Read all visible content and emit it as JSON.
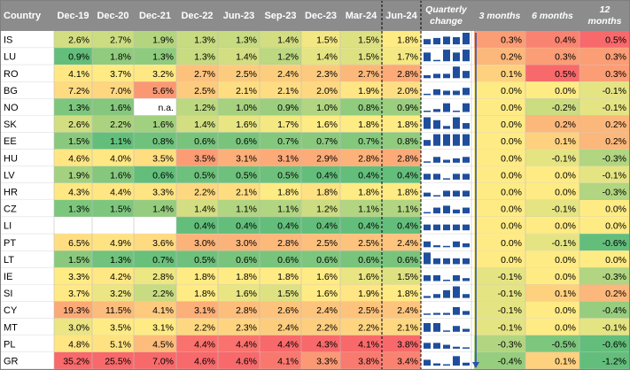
{
  "chart_data": {
    "type": "heatmap",
    "columns": {
      "country": "Country",
      "periods": [
        "Dec-19",
        "Dec-20",
        "Dec-21",
        "Dec-22",
        "Jun-23",
        "Sep-23",
        "Dec-23",
        "Mar-24",
        "Jun-24"
      ],
      "quarterly": [
        "Quarterly",
        "change"
      ],
      "changes": [
        [
          "3 months"
        ],
        [
          "6 months"
        ],
        [
          "12",
          "months"
        ]
      ]
    },
    "rows": [
      {
        "country": "IS",
        "values": [
          "2.6%",
          "2.7%",
          "1.9%",
          "1.3%",
          "1.3%",
          "1.4%",
          "1.5%",
          "1.5%",
          "1.8%"
        ],
        "changes": [
          "0.3%",
          "0.4%",
          "0.5%"
        ],
        "q": [
          -0.03,
          0.03,
          0.1,
          0.07,
          0.3
        ]
      },
      {
        "country": "LU",
        "values": [
          "0.9%",
          "1.8%",
          "1.3%",
          "1.3%",
          "1.4%",
          "1.2%",
          "1.4%",
          "1.5%",
          "1.7%"
        ],
        "changes": [
          "0.2%",
          "0.3%",
          "0.3%"
        ],
        "q": [
          0.1,
          -0.2,
          0.2,
          0.1,
          0.2
        ]
      },
      {
        "country": "RO",
        "values": [
          "4.1%",
          "3.7%",
          "3.2%",
          "2.7%",
          "2.5%",
          "2.4%",
          "2.3%",
          "2.7%",
          "2.8%"
        ],
        "changes": [
          "0.1%",
          "0.5%",
          "0.3%"
        ],
        "q": [
          -0.2,
          -0.1,
          -0.1,
          0.4,
          0.1
        ]
      },
      {
        "country": "BG",
        "values": [
          "7.2%",
          "7.0%",
          "5.6%",
          "2.5%",
          "2.1%",
          "2.1%",
          "2.0%",
          "1.9%",
          "2.0%"
        ],
        "changes": [
          "0.0%",
          "0.0%",
          "-0.1%"
        ],
        "q": [
          -0.4,
          0.0,
          -0.1,
          -0.1,
          0.1
        ]
      },
      {
        "country": "NO",
        "values": [
          "1.3%",
          "1.6%",
          "n.a.",
          "1.2%",
          "1.0%",
          "0.9%",
          "1.0%",
          "0.8%",
          "0.9%"
        ],
        "changes": [
          "0.0%",
          "-0.2%",
          "-0.1%"
        ],
        "q": [
          -0.2,
          -0.1,
          0.1,
          -0.2,
          0.1
        ]
      },
      {
        "country": "SK",
        "values": [
          "2.6%",
          "2.2%",
          "1.6%",
          "1.4%",
          "1.6%",
          "1.7%",
          "1.6%",
          "1.8%",
          "1.8%"
        ],
        "changes": [
          "0.0%",
          "0.2%",
          "0.2%"
        ],
        "q": [
          0.2,
          0.1,
          -0.1,
          0.2,
          0.0
        ]
      },
      {
        "country": "EE",
        "values": [
          "1.5%",
          "1.1%",
          "0.8%",
          "0.6%",
          "0.6%",
          "0.7%",
          "0.7%",
          "0.7%",
          "0.8%"
        ],
        "changes": [
          "0.0%",
          "0.1%",
          "0.2%"
        ],
        "q": [
          0.0,
          0.1,
          0.1,
          0.1,
          0.1
        ]
      },
      {
        "country": "HU",
        "values": [
          "4.6%",
          "4.0%",
          "3.5%",
          "3.5%",
          "3.1%",
          "3.1%",
          "2.9%",
          "2.8%",
          "2.8%"
        ],
        "changes": [
          "0.0%",
          "-0.1%",
          "-0.3%"
        ],
        "q": [
          -0.4,
          0.0,
          -0.2,
          -0.1,
          0.0
        ]
      },
      {
        "country": "LV",
        "values": [
          "1.9%",
          "1.6%",
          "0.6%",
          "0.5%",
          "0.5%",
          "0.5%",
          "0.4%",
          "0.4%",
          "0.4%"
        ],
        "changes": [
          "0.0%",
          "0.0%",
          "-0.1%"
        ],
        "q": [
          0.0,
          0.0,
          -0.1,
          0.0,
          0.0
        ]
      },
      {
        "country": "HR",
        "values": [
          "4.3%",
          "4.4%",
          "3.3%",
          "2.2%",
          "2.1%",
          "1.8%",
          "1.8%",
          "1.8%",
          "1.8%"
        ],
        "changes": [
          "0.0%",
          "0.0%",
          "-0.3%"
        ],
        "q": [
          -0.1,
          -0.3,
          0.0,
          0.0,
          0.0
        ]
      },
      {
        "country": "CZ",
        "values": [
          "1.3%",
          "1.5%",
          "1.4%",
          "1.4%",
          "1.1%",
          "1.1%",
          "1.2%",
          "1.1%",
          "1.1%"
        ],
        "changes": [
          "0.0%",
          "-0.1%",
          "0.0%"
        ],
        "q": [
          -0.3,
          0.0,
          0.1,
          -0.1,
          0.0
        ]
      },
      {
        "country": "LI",
        "values": [
          "",
          "",
          "",
          "0.4%",
          "0.4%",
          "0.4%",
          "0.4%",
          "0.4%",
          "0.4%"
        ],
        "changes": [
          "0.0%",
          "0.0%",
          "0.0%"
        ],
        "q": [
          0.0,
          0.0,
          0.0,
          0.0,
          0.0
        ]
      },
      {
        "country": "PT",
        "values": [
          "6.5%",
          "4.9%",
          "3.6%",
          "3.0%",
          "3.0%",
          "2.8%",
          "2.5%",
          "2.5%",
          "2.4%"
        ],
        "changes": [
          "0.0%",
          "-0.1%",
          "-0.6%"
        ],
        "q": [
          0.0,
          -0.2,
          -0.3,
          0.0,
          -0.1
        ]
      },
      {
        "country": "LT",
        "values": [
          "1.5%",
          "1.3%",
          "0.7%",
          "0.5%",
          "0.6%",
          "0.6%",
          "0.6%",
          "0.6%",
          "0.6%"
        ],
        "changes": [
          "0.0%",
          "0.0%",
          "0.0%"
        ],
        "q": [
          0.1,
          0.0,
          0.0,
          0.0,
          0.0
        ]
      },
      {
        "country": "IE",
        "values": [
          "3.3%",
          "4.2%",
          "2.8%",
          "1.8%",
          "1.8%",
          "1.8%",
          "1.6%",
          "1.6%",
          "1.5%"
        ],
        "changes": [
          "-0.1%",
          "0.0%",
          "-0.3%"
        ],
        "q": [
          0.0,
          0.0,
          -0.2,
          0.0,
          -0.1
        ]
      },
      {
        "country": "SI",
        "values": [
          "3.7%",
          "3.2%",
          "2.2%",
          "1.8%",
          "1.6%",
          "1.5%",
          "1.6%",
          "1.9%",
          "1.8%"
        ],
        "changes": [
          "-0.1%",
          "0.1%",
          "0.2%"
        ],
        "q": [
          -0.2,
          -0.1,
          0.1,
          0.3,
          -0.1
        ]
      },
      {
        "country": "CY",
        "values": [
          "19.3%",
          "11.5%",
          "4.1%",
          "3.1%",
          "2.8%",
          "2.6%",
          "2.4%",
          "2.5%",
          "2.4%"
        ],
        "changes": [
          "-0.1%",
          "0.0%",
          "-0.4%"
        ],
        "q": [
          -0.3,
          -0.2,
          -0.2,
          0.1,
          -0.1
        ]
      },
      {
        "country": "MT",
        "values": [
          "3.0%",
          "3.5%",
          "3.1%",
          "2.2%",
          "2.3%",
          "2.4%",
          "2.2%",
          "2.2%",
          "2.1%"
        ],
        "changes": [
          "-0.1%",
          "0.0%",
          "-0.1%"
        ],
        "q": [
          0.1,
          0.1,
          -0.2,
          0.0,
          -0.1
        ]
      },
      {
        "country": "PL",
        "values": [
          "4.8%",
          "5.1%",
          "4.5%",
          "4.4%",
          "4.4%",
          "4.4%",
          "4.3%",
          "4.1%",
          "3.8%"
        ],
        "changes": [
          "-0.3%",
          "-0.5%",
          "-0.6%"
        ],
        "q": [
          0.0,
          0.0,
          -0.1,
          -0.2,
          -0.3
        ]
      },
      {
        "country": "GR",
        "values": [
          "35.2%",
          "25.5%",
          "7.0%",
          "4.6%",
          "4.6%",
          "4.1%",
          "3.3%",
          "3.8%",
          "3.4%"
        ],
        "changes": [
          "-0.4%",
          "0.1%",
          "-1.2%"
        ],
        "q": [
          0.0,
          -0.5,
          -0.8,
          0.5,
          -0.4
        ]
      }
    ],
    "colors": {
      "header_bg": "#8c8c8c",
      "header_text": "#ffffff",
      "scale_red": "#f8696b",
      "scale_yellow": "#ffeb84",
      "scale_green": "#63be7b",
      "sparkline": "#1f4e9c",
      "arrow": "#2f4fb0"
    }
  }
}
